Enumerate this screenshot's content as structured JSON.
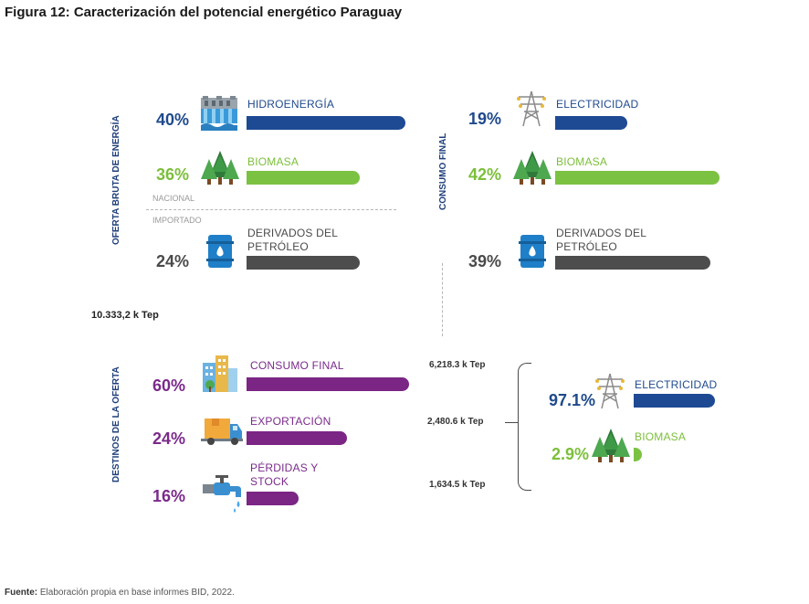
{
  "title": "Figura 12: Caracterización del potencial energético Paraguay",
  "left_axis_top": "OFERTA BRUTA DE ENERGÍA",
  "left_axis_bottom": "DESTINOS DE LA OFERTA",
  "consumo_axis": "CONSUMO FINAL",
  "nacional": "NACIONAL",
  "importado": "IMPORTADO",
  "total": "10.333,2 k Tep",
  "oferta": [
    {
      "pct": "40%",
      "label": "HIDROENERGÍA",
      "value": 40
    },
    {
      "pct": "36%",
      "label": "BIOMASA",
      "value": 36
    },
    {
      "pct": "24%",
      "label": "DERIVADOS DEL PETRÓLEO",
      "value": 24
    }
  ],
  "consumo": [
    {
      "pct": "19%",
      "label": "ELECTRICIDAD",
      "value": 19
    },
    {
      "pct": "42%",
      "label": "BIOMASA",
      "value": 42
    },
    {
      "pct": "39%",
      "label": "DERIVADOS DEL PETRÓLEO",
      "value": 39
    }
  ],
  "destinos": [
    {
      "pct": "60%",
      "label": "CONSUMO FINAL",
      "tep": "6,218.3 k Tep",
      "value": 60
    },
    {
      "pct": "24%",
      "label": "EXPORTACIÓN",
      "tep": "2,480.6 k Tep",
      "value": 24
    },
    {
      "pct": "16%",
      "label": "PÉRDIDAS Y STOCK",
      "tep": "1,634.5 k Tep",
      "value": 16
    }
  ],
  "export_split": [
    {
      "pct": "97.1%",
      "label": "ELECTRICIDAD",
      "value": 97.1
    },
    {
      "pct": "2.9%",
      "label": "BIOMASA",
      "value": 2.9
    }
  ],
  "footer_label": "Fuente:",
  "footer_text": "Elaboración propia en base informes BID, 2022.",
  "colors": {
    "blue": "#1e4a94",
    "green": "#7cc242",
    "grey": "#4d4d4d",
    "purple": "#7b2585"
  },
  "icons": [
    "dam-icon",
    "trees-icon",
    "oil-barrel-icon",
    "power-tower-icon",
    "buildings-icon",
    "delivery-truck-icon",
    "leaking-faucet-icon"
  ]
}
